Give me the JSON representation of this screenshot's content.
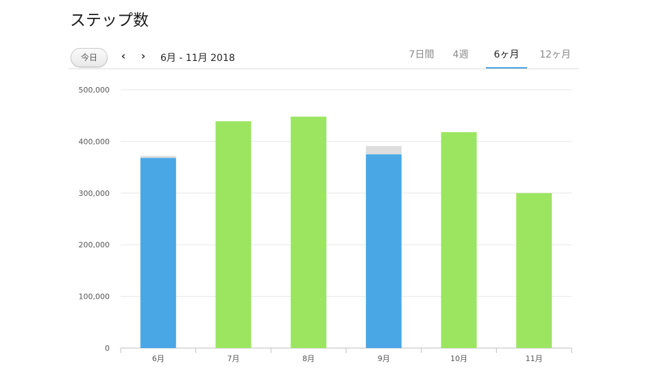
{
  "page": {
    "title": "ステップ数"
  },
  "toolbar": {
    "today_label": "今日",
    "prev_icon": "chevron-left-icon",
    "next_icon": "chevron-right-icon",
    "prev_glyph": "‹",
    "next_glyph": "›",
    "date_range": "6月 - 11月 2018",
    "tabs": [
      {
        "label": "7日間",
        "active": false
      },
      {
        "label": "4週",
        "active": false
      },
      {
        "label": "6ヶ月",
        "active": true
      },
      {
        "label": "12ヶ月",
        "active": false
      }
    ]
  },
  "chart_data": {
    "type": "bar",
    "categories": [
      "6月",
      "7月",
      "8月",
      "9月",
      "10月",
      "11月"
    ],
    "values": [
      368000,
      439000,
      448000,
      375000,
      418000,
      300000
    ],
    "goal_overflow": [
      372000,
      null,
      null,
      391000,
      null,
      null
    ],
    "bar_colors": [
      "#4aa7e6",
      "#9be561",
      "#9be561",
      "#4aa7e6",
      "#9be561",
      "#9be561"
    ],
    "overflow_color": "#dddddd",
    "ylim": [
      0,
      500000
    ],
    "yticks": [
      0,
      100000,
      200000,
      300000,
      400000,
      500000
    ],
    "ytick_labels": [
      "0",
      "100,000",
      "200,000",
      "300,000",
      "400,000",
      "500,000"
    ],
    "title": "",
    "xlabel": "",
    "ylabel": "",
    "grid": true
  }
}
